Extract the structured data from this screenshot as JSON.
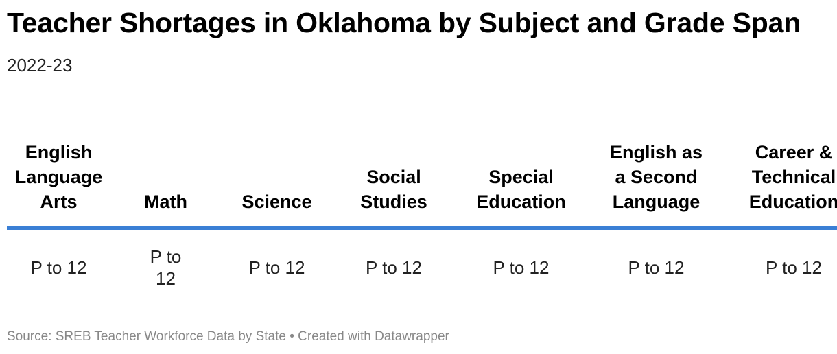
{
  "header": {
    "title": "Teacher Shortages in Oklahoma by Subject and Grade Span",
    "subtitle": "2022-23"
  },
  "table": {
    "columns": [
      "English Language Arts",
      "Math",
      "Science",
      "Social Studies",
      "Special Education",
      "English as a Second Language",
      "Career & Technical Education"
    ],
    "rows": [
      [
        "P to 12",
        "P to 12",
        "P to 12",
        "P to 12",
        "P to 12",
        "P to 12",
        "P to 12"
      ]
    ]
  },
  "footer": "Source: SREB Teacher Workforce Data by State • Created with Datawrapper"
}
